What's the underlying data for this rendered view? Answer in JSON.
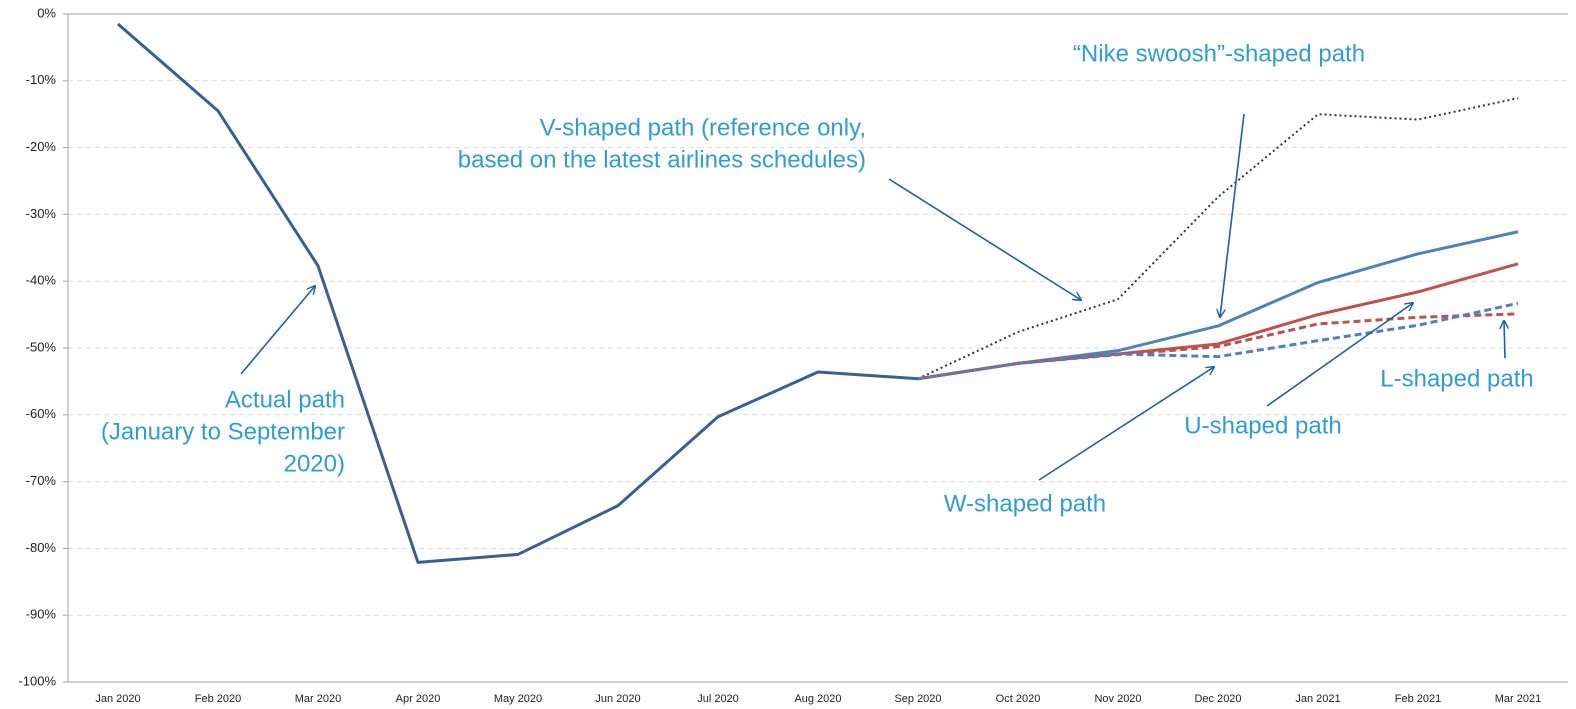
{
  "chart_data": {
    "type": "line",
    "categories": [
      "Jan 2020",
      "Feb 2020",
      "Mar 2020",
      "Apr 2020",
      "May 2020",
      "Jun 2020",
      "Jul 2020",
      "Aug 2020",
      "Sep 2020",
      "Oct 2020",
      "Nov 2020",
      "Dec 2020",
      "Jan 2021",
      "Feb 2021",
      "Mar 2021"
    ],
    "ylim": [
      -100,
      0
    ],
    "yticks": [
      {
        "value": 0,
        "label": "0%"
      },
      {
        "value": -10,
        "label": "-10%"
      },
      {
        "value": -20,
        "label": "-20%"
      },
      {
        "value": -30,
        "label": "-30%"
      },
      {
        "value": -40,
        "label": "-40%"
      },
      {
        "value": -50,
        "label": "-50%"
      },
      {
        "value": -60,
        "label": "-60%"
      },
      {
        "value": -70,
        "label": "-70%"
      },
      {
        "value": -80,
        "label": "-80%"
      },
      {
        "value": -90,
        "label": "-90%"
      },
      {
        "value": -100,
        "label": "-100%"
      }
    ],
    "grid": true,
    "series": [
      {
        "color": "#3a5f93",
        "style": "solid",
        "values": [
          -1.5,
          -14.5,
          -37.7,
          -82.1,
          -80.9,
          -73.6,
          -60.3,
          -53.6,
          -54.6,
          null,
          null,
          null,
          null,
          null,
          null
        ]
      },
      {
        "color": "#1f3864",
        "style": "dotted",
        "values": [
          null,
          null,
          null,
          null,
          null,
          null,
          null,
          null,
          -54.6,
          -47.6,
          -42.7,
          -27.4,
          -15.0,
          -15.8,
          -12.6
        ]
      },
      {
        "color": "#4f81bd",
        "style": "solid",
        "values": [
          null,
          null,
          null,
          null,
          null,
          null,
          null,
          null,
          -54.6,
          -52.3,
          -50.4,
          -46.7,
          -40.2,
          -35.9,
          -32.6
        ]
      },
      {
        "color": "#c0504d",
        "style": "solid",
        "values": [
          null,
          null,
          null,
          null,
          null,
          null,
          null,
          null,
          -54.6,
          -52.3,
          -50.9,
          -49.4,
          -45.0,
          -41.6,
          -37.4
        ]
      },
      {
        "color": "#c0504d",
        "style": "dashed",
        "values": [
          null,
          null,
          null,
          null,
          null,
          null,
          null,
          null,
          -54.6,
          -52.3,
          -51.0,
          -49.8,
          -46.4,
          -45.4,
          -44.9
        ]
      },
      {
        "color": "#4f81bd",
        "style": "dashed",
        "values": [
          null,
          null,
          null,
          null,
          null,
          null,
          null,
          null,
          -54.6,
          -52.3,
          -50.9,
          -51.3,
          -48.9,
          -46.6,
          -43.3
        ]
      }
    ],
    "annotations": [
      {
        "text": [
          "Actual path",
          "(January to September",
          "2020)"
        ]
      },
      {
        "text": [
          "V-shaped path (reference only,",
          "based on the latest airlines schedules)"
        ]
      },
      {
        "text": [
          "“Nike swoosh”-shaped path"
        ]
      },
      {
        "text": [
          "W-shaped path"
        ]
      },
      {
        "text": [
          "U-shaped path"
        ]
      },
      {
        "text": [
          "L-shaped path"
        ]
      }
    ]
  }
}
